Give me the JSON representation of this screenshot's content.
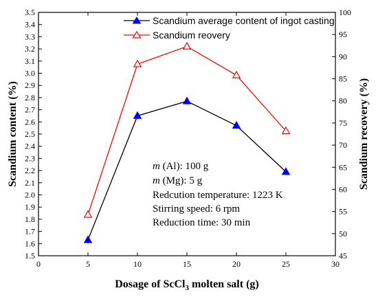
{
  "chart_data": {
    "type": "line",
    "title": "",
    "xlabel": "Dosage of ScCl",
    "xlabel_sub": "3",
    "xlabel_tail": " molten salt  (g)",
    "ylabel_left": "Scandium content (%)",
    "ylabel_right": "Scandium recovery (%)",
    "xlim": [
      0,
      30
    ],
    "ylim_left": [
      1.5,
      3.5
    ],
    "ylim_right": [
      45,
      100
    ],
    "x_ticks": [
      0,
      5,
      10,
      15,
      20,
      25,
      30
    ],
    "y_left_ticks": [
      "1.5",
      "1.6",
      "1.7",
      "1.8",
      "1.9",
      "2.0",
      "2.1",
      "2.2",
      "2.3",
      "2.4",
      "2.5",
      "2.6",
      "2.7",
      "2.8",
      "2.9",
      "3.0",
      "3.1",
      "3.2",
      "3.3",
      "3.4",
      "3.5"
    ],
    "y_right_ticks": [
      45,
      50,
      55,
      60,
      65,
      70,
      75,
      80,
      85,
      90,
      95,
      100
    ],
    "legend_position": "top-right",
    "grid": false,
    "series": [
      {
        "name": "Scandium average content of ingot casting",
        "axis": "left",
        "color": "#000000",
        "marker": "filled-triangle",
        "marker_color": "#0000ff",
        "x": [
          5,
          10,
          15,
          20,
          25
        ],
        "values": [
          1.63,
          2.65,
          2.77,
          2.57,
          2.19
        ]
      },
      {
        "name": "Scandium reovery",
        "axis": "right",
        "color": "#ff0000",
        "marker": "open-triangle",
        "marker_color": "#ff0000",
        "x": [
          5,
          10,
          15,
          20,
          25
        ],
        "values": [
          54.3,
          88.3,
          92.3,
          85.8,
          73.2
        ]
      }
    ],
    "annotations": [
      {
        "italic": "m",
        "text": " (Al): 100 g"
      },
      {
        "italic": "m",
        "text": " (Mg): 5 g"
      },
      {
        "italic": "",
        "text": "Redcution temperature: 1223 K"
      },
      {
        "italic": "",
        "text": "Stirring speed: 6 rpm"
      },
      {
        "italic": "",
        "text": "Reduction time: 30 min"
      }
    ]
  }
}
